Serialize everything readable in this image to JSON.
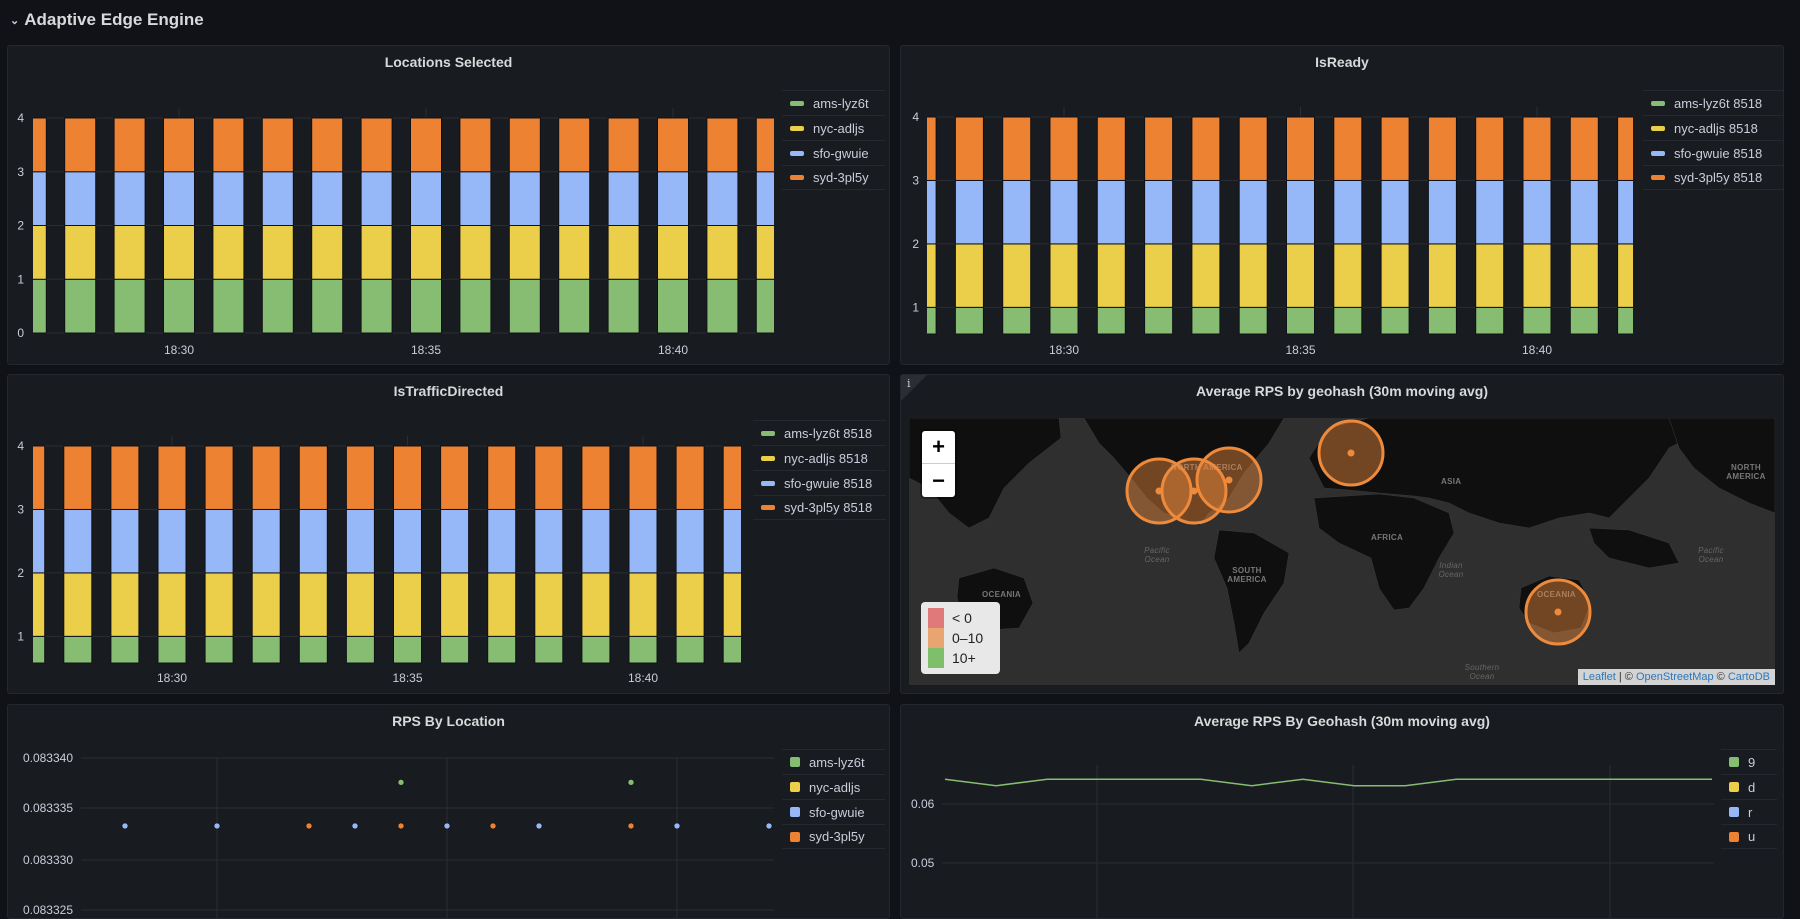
{
  "header": {
    "title": "Adaptive Edge Engine",
    "chevron_icon": "chevron-down-icon"
  },
  "colors": {
    "green": "#86bd72",
    "yellow": "#ebce4a",
    "blue": "#96b8f8",
    "orange": "#ee8233"
  },
  "panels": {
    "locations": {
      "title": "Locations Selected",
      "legend": [
        "ams-lyz6t",
        "nyc-adljs",
        "sfo-gwuie",
        "syd-3pl5y"
      ]
    },
    "isready": {
      "title": "IsReady",
      "legend": [
        "ams-lyz6t 8518",
        "nyc-adljs 8518",
        "sfo-gwuie 8518",
        "syd-3pl5y 8518"
      ]
    },
    "traffic": {
      "title": "IsTrafficDirected",
      "legend": [
        "ams-lyz6t 8518",
        "nyc-adljs 8518",
        "sfo-gwuie 8518",
        "syd-3pl5y 8518"
      ]
    },
    "map": {
      "title": "Average RPS by geohash (30m moving avg)",
      "info_icon": "info-icon",
      "zoom_in": "+",
      "zoom_out": "−",
      "legend": [
        {
          "label": "< 0",
          "color": "#e07a7a"
        },
        {
          "label": "0–10",
          "color": "#e8a572"
        },
        {
          "label": "10+",
          "color": "#7fbf6c"
        }
      ],
      "attribution": {
        "leaflet": "Leaflet",
        "sep": " | © ",
        "osm": "OpenStreetMap",
        "sep2": " © ",
        "carto": "CartoDB"
      },
      "labels": {
        "na1": "NORTH AMERICA",
        "na2": "NORTH AMERICA",
        "sa": "SOUTH AMERICA",
        "africa": "AFRICA",
        "asia": "ASIA",
        "oc1": "OCEANIA",
        "oc2": "OCEANIA",
        "pac1": "Pacific Ocean",
        "pac2": "Pacific Ocean",
        "ind": "Indian Ocean",
        "south": "Southern Ocean"
      },
      "circle_color": "#ee8a3c"
    },
    "rps": {
      "title": "RPS By Location",
      "legend": [
        "ams-lyz6t",
        "nyc-adljs",
        "sfo-gwuie",
        "syd-3pl5y"
      ]
    },
    "avg": {
      "title": "Average RPS By Geohash (30m moving avg)",
      "legend": [
        "9",
        "d",
        "r",
        "u"
      ]
    }
  },
  "chart_data": [
    {
      "type": "bar",
      "stacked": true,
      "title": "Locations Selected",
      "times": [
        "18:27",
        "18:28",
        "18:29",
        "18:30",
        "18:31",
        "18:32",
        "18:33",
        "18:34",
        "18:35",
        "18:36",
        "18:37",
        "18:38",
        "18:39",
        "18:40",
        "18:41",
        "18:42"
      ],
      "x_ticks": [
        "18:30",
        "18:35",
        "18:40"
      ],
      "y_ticks": [
        0,
        1,
        2,
        3,
        4
      ],
      "ylim": [
        0,
        4
      ],
      "series": [
        {
          "name": "ams-lyz6t",
          "value_each": 1
        },
        {
          "name": "nyc-adljs",
          "value_each": 1
        },
        {
          "name": "sfo-gwuie",
          "value_each": 1
        },
        {
          "name": "syd-3pl5y",
          "value_each": 1
        }
      ]
    },
    {
      "type": "bar",
      "stacked": true,
      "title": "IsReady",
      "times": [
        "18:27",
        "18:28",
        "18:29",
        "18:30",
        "18:31",
        "18:32",
        "18:33",
        "18:34",
        "18:35",
        "18:36",
        "18:37",
        "18:38",
        "18:39",
        "18:40",
        "18:41",
        "18:42"
      ],
      "x_ticks": [
        "18:30",
        "18:35",
        "18:40"
      ],
      "y_ticks": [
        1,
        2,
        3,
        4
      ],
      "ylim": [
        0.58,
        4
      ],
      "series": [
        {
          "name": "ams-lyz6t 8518",
          "value_each": 1
        },
        {
          "name": "nyc-adljs 8518",
          "value_each": 1
        },
        {
          "name": "sfo-gwuie 8518",
          "value_each": 1
        },
        {
          "name": "syd-3pl5y 8518",
          "value_each": 1
        }
      ]
    },
    {
      "type": "bar",
      "stacked": true,
      "title": "IsTrafficDirected",
      "times": [
        "18:27",
        "18:28",
        "18:29",
        "18:30",
        "18:31",
        "18:32",
        "18:33",
        "18:34",
        "18:35",
        "18:36",
        "18:37",
        "18:38",
        "18:39",
        "18:40",
        "18:41",
        "18:42"
      ],
      "x_ticks": [
        "18:30",
        "18:35",
        "18:40"
      ],
      "y_ticks": [
        1,
        2,
        3,
        4
      ],
      "ylim": [
        0.58,
        4
      ],
      "series": [
        {
          "name": "ams-lyz6t 8518",
          "value_each": 1
        },
        {
          "name": "nyc-adljs 8518",
          "value_each": 1
        },
        {
          "name": "sfo-gwuie 8518",
          "value_each": 1
        },
        {
          "name": "syd-3pl5y 8518",
          "value_each": 1
        }
      ]
    },
    {
      "type": "scatter",
      "title": "RPS By Location",
      "y_ticks": [
        "0.083340",
        "0.083335",
        "0.083330",
        "0.083325"
      ],
      "points": [
        {
          "series": "sfo-gwuie",
          "x_index": 0,
          "y": 0.0833333
        },
        {
          "series": "sfo-gwuie",
          "x_index": 2,
          "y": 0.0833333
        },
        {
          "series": "syd-3pl5y",
          "x_index": 4,
          "y": 0.0833333
        },
        {
          "series": "sfo-gwuie",
          "x_index": 5,
          "y": 0.0833333
        },
        {
          "series": "syd-3pl5y",
          "x_index": 6,
          "y": 0.0833333
        },
        {
          "series": "ams-lyz6t",
          "x_index": 6,
          "y": 0.0833376
        },
        {
          "series": "sfo-gwuie",
          "x_index": 7,
          "y": 0.0833333
        },
        {
          "series": "syd-3pl5y",
          "x_index": 8,
          "y": 0.0833333
        },
        {
          "series": "sfo-gwuie",
          "x_index": 9,
          "y": 0.0833333
        },
        {
          "series": "syd-3pl5y",
          "x_index": 11,
          "y": 0.0833333
        },
        {
          "series": "ams-lyz6t",
          "x_index": 11,
          "y": 0.0833376
        },
        {
          "series": "sfo-gwuie",
          "x_index": 12,
          "y": 0.0833333
        },
        {
          "series": "sfo-gwuie",
          "x_index": 14,
          "y": 0.0833333
        }
      ]
    },
    {
      "type": "line",
      "title": "Average RPS By Geohash (30m moving avg)",
      "y_ticks": [
        "0.06",
        "0.05"
      ],
      "series": [
        {
          "name": "9",
          "values": [
            0.0642,
            0.0631,
            0.0642,
            0.0642,
            0.0642,
            0.0642,
            0.0631,
            0.0642,
            0.0631,
            0.0631,
            0.0642,
            0.0642,
            0.0642,
            0.0642,
            0.0642,
            0.0642
          ]
        }
      ]
    }
  ]
}
